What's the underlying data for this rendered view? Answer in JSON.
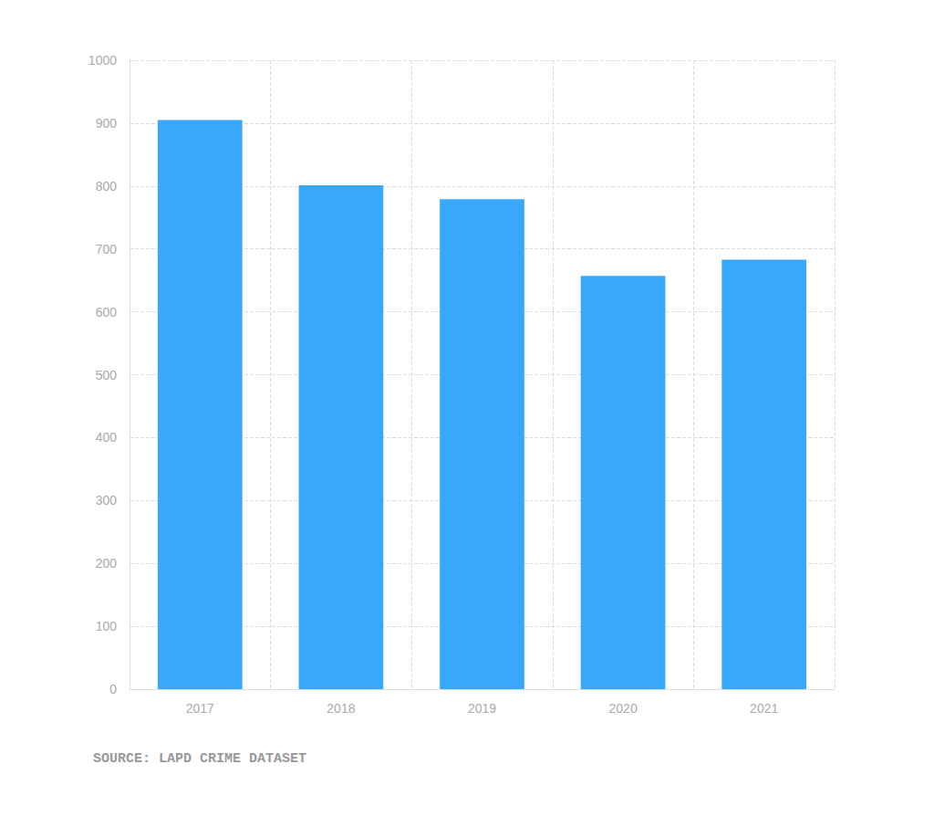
{
  "chart_data": {
    "type": "bar",
    "categories": [
      "2017",
      "2018",
      "2019",
      "2020",
      "2021"
    ],
    "values": [
      905,
      801,
      779,
      657,
      683
    ],
    "color": "#38a8fd",
    "ylim": [
      0,
      1000
    ],
    "yticks": [
      0,
      100,
      200,
      300,
      400,
      500,
      600,
      700,
      800,
      900,
      1000
    ],
    "grid": true,
    "annotation": "SOURCE: LAPD CRIME DATASET"
  }
}
